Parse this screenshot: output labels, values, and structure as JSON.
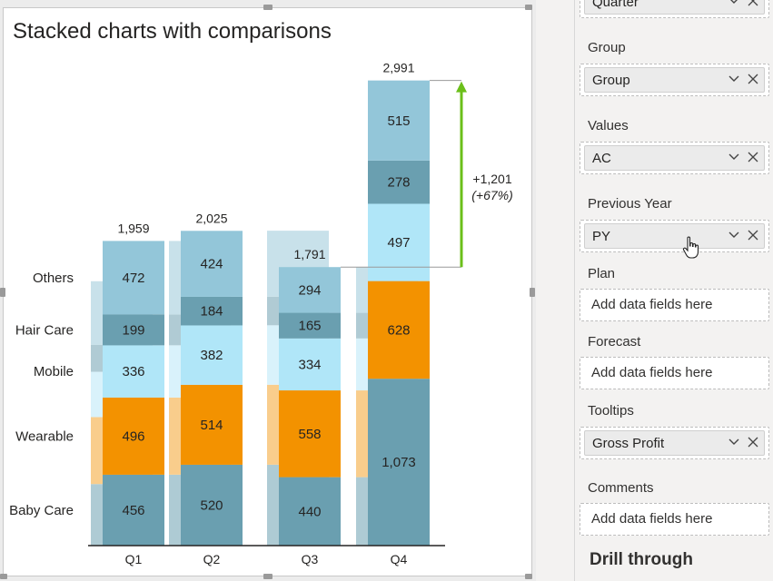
{
  "chart": {
    "title": "Stacked charts with comparisons"
  },
  "chart_data": {
    "type": "bar",
    "stacked": true,
    "categories": [
      "Q1",
      "Q2",
      "Q3",
      "Q4"
    ],
    "series": [
      {
        "name": "Baby Care",
        "values": [
          456,
          520,
          440,
          1073
        ],
        "color": "#6a9fb0"
      },
      {
        "name": "Wearable",
        "values": [
          496,
          514,
          558,
          628
        ],
        "color": "#f39200"
      },
      {
        "name": "Mobile",
        "values": [
          336,
          382,
          334,
          497
        ],
        "color": "#b0e6f8"
      },
      {
        "name": "Hair Care",
        "values": [
          199,
          184,
          165,
          278
        ],
        "color": "#6a9fb0"
      },
      {
        "name": "Others",
        "values": [
          472,
          424,
          294,
          515
        ],
        "color": "#93c6d9"
      }
    ],
    "totals": [
      1959,
      2025,
      1791,
      2991
    ],
    "total_labels": [
      "1,959",
      "2,025",
      "1,791",
      "2,991"
    ],
    "segment_labels": [
      [
        "456",
        "496",
        "336",
        "199",
        "472"
      ],
      [
        "520",
        "514",
        "382",
        "184",
        "424"
      ],
      [
        "440",
        "558",
        "334",
        "165",
        "294"
      ],
      [
        "1,073",
        "628",
        "497",
        "278",
        "515"
      ]
    ],
    "comparison_series_name": "PY",
    "comparison": {
      "from": "Q3",
      "to": "Q4",
      "delta_label": "+1,201",
      "percent_label": "(+67%)",
      "color": "#6bbf1a"
    },
    "ylim": [
      0,
      3000
    ]
  },
  "pane": {
    "wells": [
      {
        "label": "",
        "field": "Quarter"
      },
      {
        "label": "Group",
        "field": "Group"
      },
      {
        "label": "Values",
        "field": "AC"
      },
      {
        "label": "Previous Year",
        "field": "PY"
      },
      {
        "label": "Plan",
        "placeholder": "Add data fields here"
      },
      {
        "label": "Forecast",
        "placeholder": "Add data fields here"
      },
      {
        "label": "Tooltips",
        "field": "Gross Profit"
      },
      {
        "label": "Comments",
        "placeholder": "Add data fields here"
      }
    ],
    "drill_through": "Drill through"
  }
}
